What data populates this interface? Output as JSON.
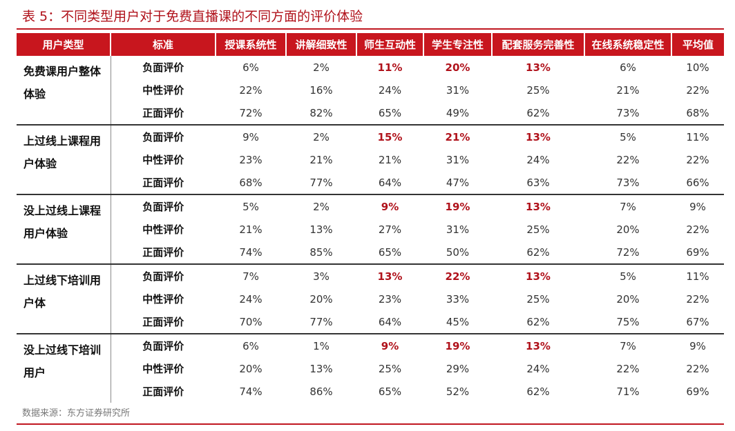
{
  "title": "表 5：不同类型用户对于免费直播课的不同方面的评价体验",
  "headers": [
    "用户类型",
    "标准",
    "授课系统性",
    "讲解细致性",
    "师生互动性",
    "学生专注性",
    "配套服务完善性",
    "在线系统稳定性",
    "平均值"
  ],
  "highlight_color": "#b0121b",
  "header_color": "#c8161e",
  "highlight_columns": [
    2,
    3,
    4
  ],
  "groups": [
    {
      "name": "免费课用户整体体验",
      "rows": [
        {
          "label": "负面评价",
          "values": [
            "6%",
            "2%",
            "11%",
            "20%",
            "13%",
            "6%",
            "10%"
          ]
        },
        {
          "label": "中性评价",
          "values": [
            "22%",
            "16%",
            "24%",
            "31%",
            "25%",
            "21%",
            "22%"
          ]
        },
        {
          "label": "正面评价",
          "values": [
            "72%",
            "82%",
            "65%",
            "49%",
            "62%",
            "73%",
            "68%"
          ]
        }
      ]
    },
    {
      "name": "上过线上课程用户体验",
      "rows": [
        {
          "label": "负面评价",
          "values": [
            "9%",
            "2%",
            "15%",
            "21%",
            "13%",
            "5%",
            "11%"
          ]
        },
        {
          "label": "中性评价",
          "values": [
            "23%",
            "21%",
            "21%",
            "31%",
            "24%",
            "22%",
            "22%"
          ]
        },
        {
          "label": "正面评价",
          "values": [
            "68%",
            "77%",
            "64%",
            "47%",
            "63%",
            "73%",
            "66%"
          ]
        }
      ]
    },
    {
      "name": "没上过线上课程用户体验",
      "rows": [
        {
          "label": "负面评价",
          "values": [
            "5%",
            "2%",
            "9%",
            "19%",
            "13%",
            "7%",
            "9%"
          ]
        },
        {
          "label": "中性评价",
          "values": [
            "21%",
            "13%",
            "27%",
            "31%",
            "25%",
            "20%",
            "22%"
          ]
        },
        {
          "label": "正面评价",
          "values": [
            "74%",
            "85%",
            "65%",
            "50%",
            "62%",
            "72%",
            "69%"
          ]
        }
      ]
    },
    {
      "name": "上过线下培训用户体",
      "rows": [
        {
          "label": "负面评价",
          "values": [
            "7%",
            "3%",
            "13%",
            "22%",
            "13%",
            "5%",
            "11%"
          ]
        },
        {
          "label": "中性评价",
          "values": [
            "24%",
            "20%",
            "23%",
            "33%",
            "25%",
            "20%",
            "22%"
          ]
        },
        {
          "label": "正面评价",
          "values": [
            "70%",
            "77%",
            "64%",
            "45%",
            "62%",
            "75%",
            "67%"
          ]
        }
      ]
    },
    {
      "name": "没上过线下培训用户",
      "rows": [
        {
          "label": "负面评价",
          "values": [
            "6%",
            "1%",
            "9%",
            "19%",
            "13%",
            "7%",
            "9%"
          ]
        },
        {
          "label": "中性评价",
          "values": [
            "20%",
            "13%",
            "25%",
            "29%",
            "24%",
            "22%",
            "22%"
          ]
        },
        {
          "label": "正面评价",
          "values": [
            "74%",
            "86%",
            "65%",
            "52%",
            "62%",
            "71%",
            "69%"
          ]
        }
      ]
    }
  ],
  "source": "数据来源：东方证券研究所"
}
